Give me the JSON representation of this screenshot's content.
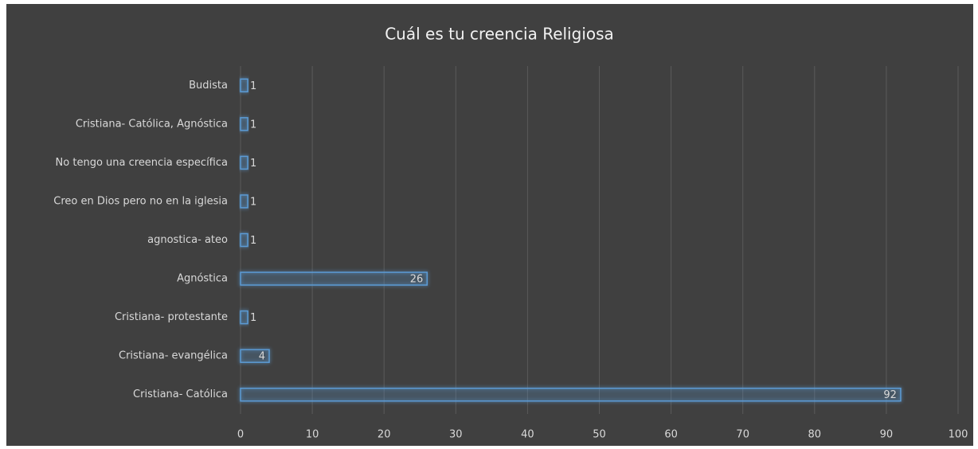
{
  "chart_data": {
    "type": "bar",
    "orientation": "horizontal",
    "title": "Cuál es tu creencia Religiosa",
    "categories": [
      "Budista",
      "Cristiana- Católica, Agnóstica",
      "No tengo una creencia específica",
      "Creo en Dios pero no en la iglesia",
      "agnostica- ateo",
      "Agnóstica",
      "Cristiana- protestante",
      "Cristiana- evangélica",
      "Cristiana- Católica"
    ],
    "values": [
      1,
      1,
      1,
      1,
      1,
      26,
      1,
      4,
      92
    ],
    "color": "#5b9bd5",
    "xlim": [
      0,
      100
    ],
    "xticks": [
      0,
      10,
      20,
      30,
      40,
      50,
      60,
      70,
      80,
      90,
      100
    ],
    "grid": true
  }
}
